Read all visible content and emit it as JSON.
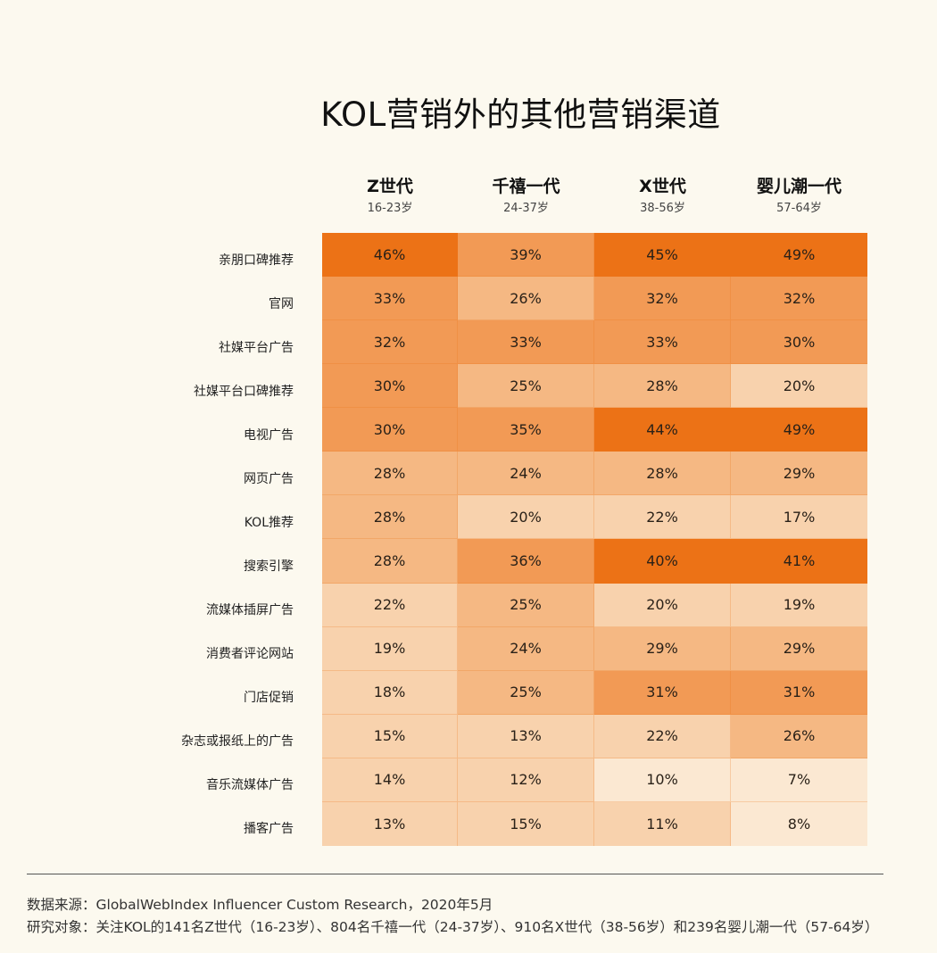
{
  "chart_data": {
    "type": "heatmap",
    "title": "KOL营销外的其他营销渠道",
    "columns": [
      {
        "name": "Z世代",
        "age": "16-23岁"
      },
      {
        "name": "千禧一代",
        "age": "24-37岁"
      },
      {
        "name": "X世代",
        "age": "38-56岁"
      },
      {
        "name": "婴儿潮一代",
        "age": "57-64岁"
      }
    ],
    "rows": [
      "亲朋口碑推荐",
      "官网",
      "社媒平台广告",
      "社媒平台口碑推荐",
      "电视广告",
      "网页广告",
      "KOL推荐",
      "搜索引擎",
      "流媒体插屏广告",
      "消费者评论网站",
      "门店促销",
      "杂志或报纸上的广告",
      "音乐流媒体广告",
      "播客广告"
    ],
    "values": [
      [
        46,
        39,
        45,
        49
      ],
      [
        33,
        26,
        32,
        32
      ],
      [
        32,
        33,
        33,
        30
      ],
      [
        30,
        25,
        28,
        20
      ],
      [
        30,
        35,
        44,
        49
      ],
      [
        28,
        24,
        28,
        29
      ],
      [
        28,
        20,
        22,
        17
      ],
      [
        28,
        36,
        40,
        41
      ],
      [
        22,
        25,
        20,
        19
      ],
      [
        19,
        24,
        29,
        29
      ],
      [
        18,
        25,
        31,
        31
      ],
      [
        15,
        13,
        22,
        26
      ],
      [
        14,
        12,
        10,
        7
      ],
      [
        13,
        15,
        11,
        8
      ]
    ],
    "unit": "%",
    "color_scale": [
      "#fbe8d2",
      "#f8d2ad",
      "#f5b883",
      "#f29a55",
      "#ec7216"
    ]
  },
  "footer": {
    "source": "数据来源：GlobalWebIndex Influencer Custom Research，2020年5月",
    "sample": "研究对象：关注KOL的141名Z世代（16-23岁）、804名千禧一代（24-37岁）、910名X世代（38-56岁）和239名婴儿潮一代（57-64岁）"
  }
}
